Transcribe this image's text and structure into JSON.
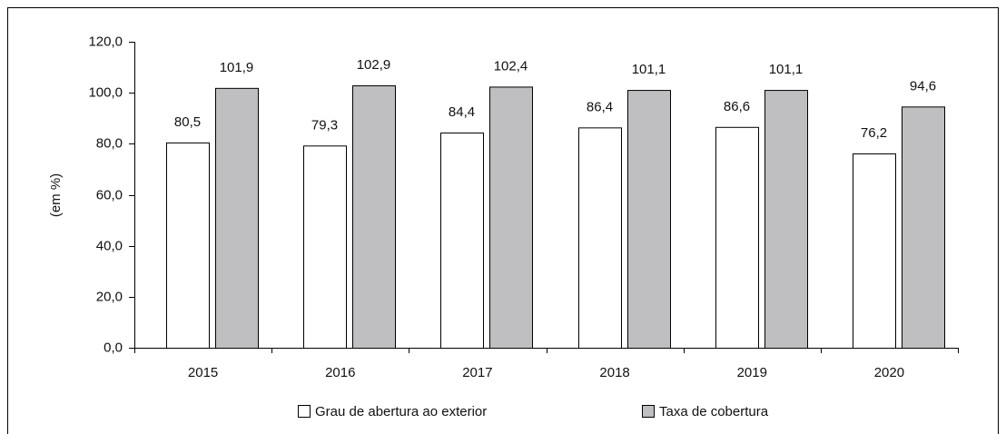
{
  "chart_data": {
    "type": "bar",
    "y_label": "(em %)",
    "categories": [
      "2015",
      "2016",
      "2017",
      "2018",
      "2019",
      "2020"
    ],
    "series": [
      {
        "name": "Grau de abertura ao exterior",
        "color": "#ffffff",
        "values": [
          80.5,
          79.3,
          84.4,
          86.4,
          86.6,
          76.2
        ],
        "value_labels": [
          "80,5",
          "79,3",
          "84,4",
          "86,4",
          "86,6",
          "76,2"
        ]
      },
      {
        "name": "Taxa de cobertura",
        "color": "#bfbfc1",
        "values": [
          101.9,
          102.9,
          102.4,
          101.1,
          101.1,
          94.6
        ],
        "value_labels": [
          "101,9",
          "102,9",
          "102,4",
          "101,1",
          "101,1",
          "94,6"
        ]
      }
    ],
    "ylim": [
      0,
      120
    ],
    "yticks": [
      {
        "value": 0,
        "label": "0,0"
      },
      {
        "value": 20,
        "label": "20,0"
      },
      {
        "value": 40,
        "label": "40,0"
      },
      {
        "value": 60,
        "label": "60,0"
      },
      {
        "value": 80,
        "label": "80,0"
      },
      {
        "value": 100,
        "label": "100,0"
      },
      {
        "value": 120,
        "label": "120,0"
      }
    ],
    "grid": false,
    "legend": "bottom"
  }
}
